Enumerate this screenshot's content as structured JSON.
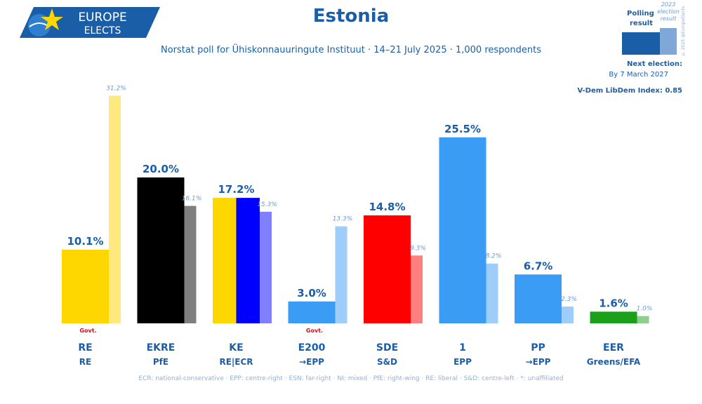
{
  "header": {
    "logo_line1": "EUROPE",
    "logo_line2": "ELECTS",
    "title": "Estonia",
    "subtitle": "Norstat poll for Ühiskonnauuringute Instituut · 14–21 July 2025 · 1,000 respondents"
  },
  "legend": {
    "polling_label_1": "Polling",
    "polling_label_2": "result",
    "election_label_1": "2023",
    "election_label_2": "election",
    "election_label_3": "result",
    "copyright": "© 2025 @EuropeElects"
  },
  "info": {
    "next_election_label": "Next election:",
    "next_election_date": "By 7 March 2027",
    "vdem": "V-Dem LibDem Index: 0.85"
  },
  "footnote": "ECR: national-conservative · EPP: centre-right · ESN: far-right · NI: mixed · PfE: right-wing · RE: liberal · S&D: centre-left · *: unaffiliated",
  "colors": {
    "brand_blue": "#1b5ea8",
    "light_note": "#6b9bd8"
  },
  "chart_data": {
    "type": "bar",
    "categories": [
      "RE",
      "EKRE",
      "KE",
      "E200",
      "SDE",
      "1",
      "PP",
      "EER"
    ],
    "groups": [
      "RE",
      "PfE",
      "RE|ECR",
      "→EPP",
      "S&D",
      "EPP",
      "→EPP",
      "Greens/EFA"
    ],
    "series": [
      {
        "name": "Polling result",
        "values": [
          10.1,
          20.0,
          17.2,
          3.0,
          14.8,
          25.5,
          6.7,
          1.6
        ]
      },
      {
        "name": "2023 election result",
        "values": [
          31.2,
          16.1,
          15.3,
          13.3,
          9.3,
          8.2,
          2.3,
          1.0
        ]
      }
    ],
    "poll_labels": [
      "10.1%",
      "20.0%",
      "17.2%",
      "3.0%",
      "14.8%",
      "25.5%",
      "6.7%",
      "1.6%"
    ],
    "election_labels": [
      "31.2%",
      "16.1%",
      "15.3%",
      "13.3%",
      "9.3%",
      "8.2%",
      "2.3%",
      "1.0%"
    ],
    "govt_labels": [
      "Govt.",
      "",
      "",
      "Govt.",
      "",
      "",
      "",
      ""
    ],
    "poll_colors": [
      [
        "#ffd700"
      ],
      [
        "#000000"
      ],
      [
        "#ffd700",
        "#0000ff"
      ],
      [
        "#3a9cf5"
      ],
      [
        "#ff0000"
      ],
      [
        "#3a9cf5"
      ],
      [
        "#3a9cf5"
      ],
      [
        "#1aa01a"
      ]
    ],
    "election_colors": [
      "#ffe97f",
      "#7f7f7f",
      "#8080ff",
      "#9fcdfa",
      "#ff7f7f",
      "#9fcdfa",
      "#9fcdfa",
      "#8cd08c"
    ],
    "ylim": [
      0,
      32
    ],
    "legend_position": "top-right"
  }
}
